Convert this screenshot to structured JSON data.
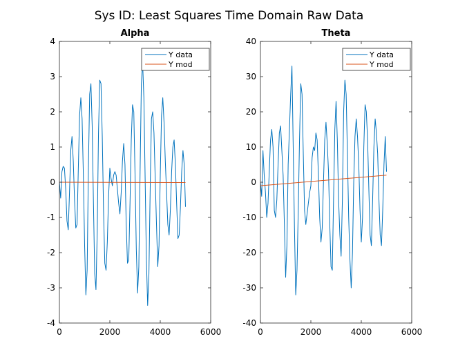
{
  "figure_title": "Sys ID: Least Squares Time Domain Raw Data",
  "colors": {
    "y_data": "#0072BD",
    "y_mod": "#D95319",
    "axis": "#262626"
  },
  "chart_data": [
    {
      "type": "line",
      "title": "Alpha",
      "xlabel": "",
      "ylabel": "",
      "xlim": [
        0,
        6000
      ],
      "ylim": [
        -4,
        4
      ],
      "xticks": [
        0,
        2000,
        4000,
        6000
      ],
      "yticks": [
        -4,
        -3,
        -2,
        -1,
        0,
        1,
        2,
        3,
        4
      ],
      "legend_position": "top-right",
      "grid": false,
      "series": [
        {
          "name": "Y data",
          "x": [
            0,
            50,
            100,
            150,
            200,
            250,
            300,
            350,
            400,
            450,
            500,
            550,
            600,
            650,
            700,
            750,
            800,
            850,
            900,
            950,
            1000,
            1050,
            1100,
            1150,
            1200,
            1250,
            1300,
            1350,
            1400,
            1450,
            1500,
            1550,
            1600,
            1650,
            1700,
            1750,
            1800,
            1850,
            1900,
            1950,
            2000,
            2050,
            2100,
            2150,
            2200,
            2250,
            2300,
            2350,
            2400,
            2450,
            2500,
            2550,
            2600,
            2650,
            2700,
            2750,
            2800,
            2850,
            2900,
            2950,
            3000,
            3050,
            3100,
            3150,
            3200,
            3250,
            3300,
            3350,
            3400,
            3450,
            3500,
            3550,
            3600,
            3650,
            3700,
            3750,
            3800,
            3850,
            3900,
            3950,
            4000,
            4050,
            4100,
            4150,
            4200,
            4250,
            4300,
            4350,
            4400,
            4450,
            4500,
            4550,
            4600,
            4650,
            4700,
            4750,
            4800,
            4850,
            4900,
            4950,
            5000
          ],
          "values": [
            0.0,
            -0.45,
            0.3,
            0.45,
            0.4,
            -0.2,
            -1.1,
            -1.35,
            -0.3,
            0.9,
            1.3,
            0.6,
            -0.5,
            -1.3,
            -1.2,
            0.4,
            1.9,
            2.4,
            1.8,
            0.2,
            -1.8,
            -3.2,
            -2.5,
            0.4,
            2.5,
            2.8,
            1.6,
            -0.6,
            -2.6,
            -3.05,
            -1.4,
            1.4,
            2.9,
            2.8,
            1.3,
            -0.8,
            -2.3,
            -2.5,
            -1.7,
            -0.4,
            0.4,
            0.1,
            -0.1,
            0.2,
            0.3,
            0.2,
            -0.2,
            -0.6,
            -0.9,
            -0.3,
            0.6,
            1.1,
            0.5,
            -1.2,
            -2.3,
            -2.2,
            -0.6,
            1.2,
            2.2,
            2.0,
            0.2,
            -1.9,
            -3.15,
            -2.4,
            0.3,
            2.8,
            3.4,
            2.4,
            0.1,
            -2.2,
            -3.5,
            -2.6,
            -0.2,
            1.8,
            2.0,
            1.4,
            0.1,
            -1.2,
            -2.4,
            -1.8,
            0.2,
            1.9,
            2.4,
            1.7,
            0.6,
            -0.3,
            -1.2,
            -1.5,
            -0.8,
            0.3,
            1.0,
            1.2,
            0.5,
            -0.6,
            -1.6,
            -1.5,
            -0.7,
            0.3,
            0.9,
            0.5,
            -0.7
          ]
        },
        {
          "name": "Y mod",
          "x": [
            0,
            5000
          ],
          "values": [
            0.0,
            -0.01
          ]
        }
      ]
    },
    {
      "type": "line",
      "title": "Theta",
      "xlabel": "",
      "ylabel": "",
      "xlim": [
        0,
        6000
      ],
      "ylim": [
        -40,
        40
      ],
      "xticks": [
        0,
        2000,
        4000,
        6000
      ],
      "yticks": [
        -40,
        -30,
        -20,
        -10,
        0,
        10,
        20,
        30,
        40
      ],
      "legend_position": "top-right",
      "grid": false,
      "series": [
        {
          "name": "Y data",
          "x": [
            0,
            50,
            100,
            150,
            200,
            250,
            300,
            350,
            400,
            450,
            500,
            550,
            600,
            650,
            700,
            750,
            800,
            850,
            900,
            950,
            1000,
            1050,
            1100,
            1150,
            1200,
            1250,
            1300,
            1350,
            1400,
            1450,
            1500,
            1550,
            1600,
            1650,
            1700,
            1750,
            1800,
            1850,
            1900,
            1950,
            2000,
            2050,
            2100,
            2150,
            2200,
            2250,
            2300,
            2350,
            2400,
            2450,
            2500,
            2550,
            2600,
            2650,
            2700,
            2750,
            2800,
            2850,
            2900,
            2950,
            3000,
            3050,
            3100,
            3150,
            3200,
            3250,
            3300,
            3350,
            3400,
            3450,
            3500,
            3550,
            3600,
            3650,
            3700,
            3750,
            3800,
            3850,
            3900,
            3950,
            4000,
            4050,
            4100,
            4150,
            4200,
            4250,
            4300,
            4350,
            4400,
            4450,
            4500,
            4550,
            4600,
            4650,
            4700,
            4750,
            4800,
            4850,
            4900,
            4950,
            5000
          ],
          "values": [
            0,
            -4,
            9,
            2,
            -3,
            -10,
            -6,
            3,
            12,
            15,
            10,
            -8,
            -10,
            -5,
            5,
            14,
            16,
            9,
            2,
            -12,
            -27,
            -18,
            5,
            15,
            25,
            33,
            10,
            -13,
            -32,
            -25,
            -8,
            12,
            28,
            25,
            8,
            -8,
            -12,
            -9,
            -6,
            -3,
            -1,
            7,
            10,
            9,
            14,
            12,
            2,
            -10,
            -17,
            -13,
            0,
            12,
            17,
            11,
            3,
            -12,
            -24,
            -25,
            -5,
            15,
            23,
            12,
            -5,
            -15,
            -21,
            -5,
            20,
            29,
            25,
            8,
            -10,
            -22,
            -30,
            -20,
            0,
            13,
            18,
            13,
            5,
            -8,
            -17,
            -10,
            10,
            22,
            20,
            12,
            -2,
            -15,
            -18,
            -5,
            10,
            18,
            14,
            8,
            -5,
            -15,
            -18,
            -8,
            5,
            13,
            3
          ]
        },
        {
          "name": "Y mod",
          "x": [
            0,
            5000
          ],
          "values": [
            -1.0,
            2.0
          ]
        }
      ]
    }
  ]
}
